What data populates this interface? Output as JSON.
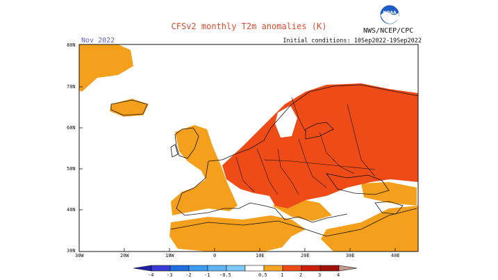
{
  "title": "CFSv2 monthly T2m anomalies (K)",
  "month": "Nov 2022",
  "agency": "NWS/NCEP/CPC",
  "initial_conditions": "Initial conditions: 10Sep2022-19Sep2022",
  "logo": {
    "text": "NOAA",
    "icon": "noaa-logo-icon"
  },
  "map": {
    "lat_labels": [
      "80N",
      "70N",
      "60N",
      "50N",
      "40N",
      "30N"
    ],
    "lon_labels": [
      "30W",
      "20W",
      "10W",
      "0",
      "10E",
      "20E",
      "30E",
      "40E"
    ],
    "lat_range": [
      30,
      80
    ],
    "lon_range": [
      -30,
      45
    ]
  },
  "colorbar": {
    "ticks": [
      "-4",
      "-3",
      "-2",
      "-1",
      "-0.5",
      "0.5",
      "1",
      "2",
      "3",
      "4"
    ],
    "colors": [
      "#1f1fa8",
      "#3a3ad6",
      "#1f6fe0",
      "#3a9bf0",
      "#7cc8f8",
      "#ffffff",
      "#f5a623",
      "#ee4b17",
      "#cc1f10",
      "#9e1208",
      "#c79a8b"
    ]
  },
  "colors": {
    "anom_05_1": "#f5a01c",
    "anom_1_2": "#ee4b17",
    "anom_2_3": "#cc1f10"
  }
}
